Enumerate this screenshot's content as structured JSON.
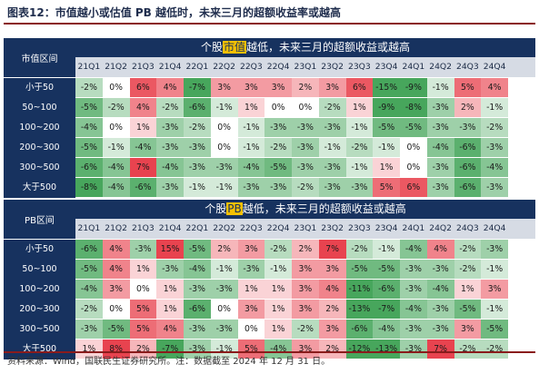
{
  "figure_title": "图表12：市值越小或估值 PB 越低时，未来三月的超额收益率或越高",
  "source_note": "资料来源：Wind，国联民生证券研究所。注：数据截至 2024 年 12 月 31 日。",
  "quarters": [
    "21Q1",
    "21Q2",
    "21Q3",
    "21Q4",
    "22Q1",
    "22Q2",
    "22Q3",
    "22Q4",
    "23Q1",
    "23Q2",
    "23Q3",
    "23Q4",
    "24Q1",
    "24Q2",
    "24Q3",
    "24Q4"
  ],
  "colors": {
    "positive": "#e8434f",
    "negative": "#47a65c",
    "neutral": "#ffffff",
    "header": "#17325f",
    "highlight": "#f5c000"
  },
  "chart_data": [
    {
      "type": "heatmap",
      "row_header": "市值区间",
      "title_prefix": "个股",
      "title_highlight": "市值",
      "title_suffix": "越低，未来三月的超额收益或越高",
      "rows": [
        "小于50",
        "50~100",
        "100~200",
        "200~300",
        "300~500",
        "大于500"
      ],
      "values": [
        [
          -2,
          0,
          6,
          4,
          -7,
          3,
          3,
          3,
          2,
          3,
          6,
          -15,
          -9,
          -1,
          5,
          4
        ],
        [
          -5,
          -2,
          4,
          -2,
          -6,
          -1,
          1,
          0,
          0,
          -2,
          1,
          -9,
          -8,
          -3,
          2,
          -1
        ],
        [
          -4,
          0,
          1,
          -3,
          -2,
          0,
          -1,
          -3,
          -3,
          -3,
          -1,
          -5,
          -5,
          -3,
          -3,
          -2
        ],
        [
          -5,
          -1,
          -4,
          -3,
          -3,
          0,
          -1,
          -2,
          -3,
          -1,
          -2,
          -1,
          0,
          -4,
          -6,
          -3
        ],
        [
          -6,
          -4,
          7,
          -4,
          -3,
          -3,
          -4,
          -5,
          -3,
          -3,
          -1,
          1,
          0,
          -3,
          -6,
          -4
        ],
        [
          -8,
          -4,
          -6,
          -3,
          -1,
          -1,
          -3,
          -3,
          -2,
          -3,
          -3,
          5,
          6,
          -3,
          -6,
          -3
        ]
      ]
    },
    {
      "type": "heatmap",
      "row_header": "PB区间",
      "title_prefix": "个股",
      "title_highlight": "PB",
      "title_suffix": "越低，未来三月的超额收益或越高",
      "rows": [
        "小于50",
        "50~100",
        "100~200",
        "200~300",
        "300~500",
        "大于500"
      ],
      "values": [
        [
          -6,
          4,
          -3,
          15,
          -5,
          2,
          3,
          -2,
          2,
          7,
          -2,
          -1,
          -4,
          4,
          -2,
          -3
        ],
        [
          -5,
          4,
          1,
          -3,
          -4,
          -1,
          -3,
          -1,
          3,
          3,
          -5,
          -5,
          -3,
          -3,
          -2,
          -1
        ],
        [
          -4,
          3,
          0,
          1,
          -3,
          -3,
          1,
          1,
          3,
          4,
          -11,
          -6,
          -3,
          -4,
          1,
          3
        ],
        [
          -2,
          0,
          5,
          1,
          -6,
          0,
          3,
          1,
          3,
          2,
          -13,
          -7,
          -4,
          -3,
          -5,
          -1
        ],
        [
          -3,
          -5,
          5,
          4,
          -3,
          -3,
          0,
          1,
          -2,
          3,
          -6,
          -4,
          -3,
          -3,
          3,
          -5
        ],
        [
          1,
          8,
          2,
          -7,
          -3,
          -1,
          5,
          -4,
          3,
          2,
          -12,
          -13,
          -3,
          7,
          -2,
          -2
        ]
      ]
    }
  ]
}
